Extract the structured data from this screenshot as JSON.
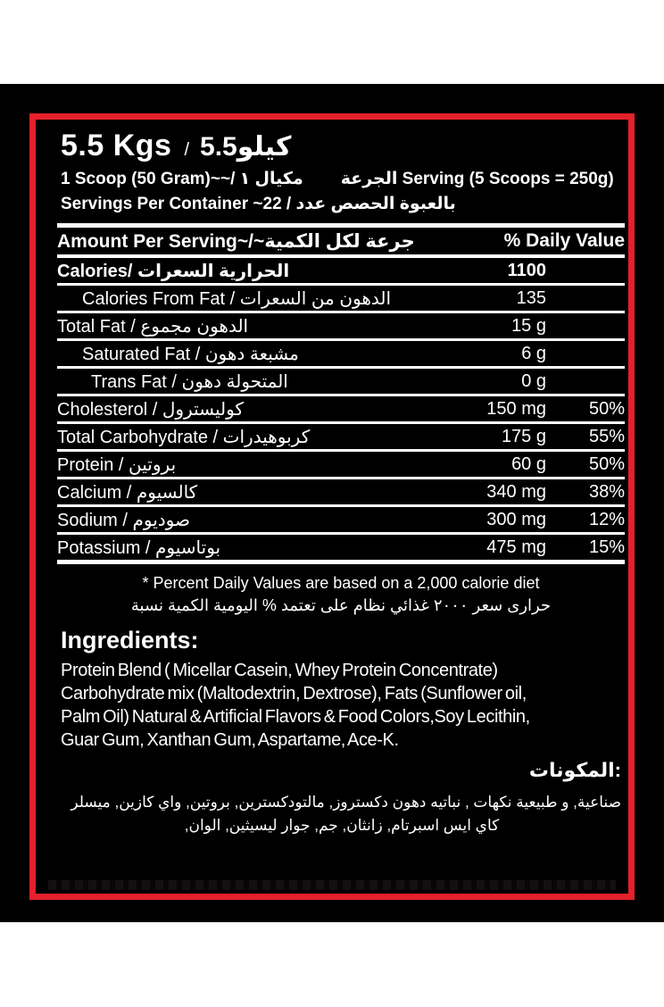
{
  "colors": {
    "border_red": "#e4202a",
    "panel": "#000000",
    "text": "#ffffff"
  },
  "label": {
    "size_line": {
      "kgs": "5.5 Kgs",
      "slash": "/",
      "kilo_ar": "5.5كيلو"
    },
    "serving_line": {
      "left": "1 Scoop (50 Gram)~~/ مكيال ١",
      "right": "الجرعة Serving (5 Scoops = 250g)"
    },
    "servings_per_container": "Servings Per Container ~22 / بالعبوة الحصص عدد",
    "table": {
      "header": {
        "amount": "Amount Per Serving~/~جرعة لكل الكمية",
        "daily": "% Daily Value"
      },
      "rows": [
        {
          "label": "Calories/ الحرارية السعرات",
          "value": "1100",
          "pct": ""
        },
        {
          "label": "Calories From Fat / الدهون من السعرات",
          "value": "135",
          "pct": ""
        },
        {
          "label": "Total Fat / الدهون مجموع",
          "value": "15 g",
          "pct": ""
        },
        {
          "label": "Saturated Fat / مشبعة دهون",
          "value": "6 g",
          "pct": ""
        },
        {
          "label": "Trans Fat / المتحولة دهون",
          "value": "0 g",
          "pct": ""
        },
        {
          "label": "Cholesterol / كوليسترول",
          "value": "150 mg",
          "pct": "50%"
        },
        {
          "label": "Total Carbohydrate / كربوهيدرات",
          "value": "175 g",
          "pct": "55%"
        },
        {
          "label": "Protein / بروتين",
          "value": "60 g",
          "pct": "50%"
        },
        {
          "label": "Calcium / كالسيوم",
          "value": "340 mg",
          "pct": "38%"
        },
        {
          "label": "Sodium / صوديوم",
          "value": "300 mg",
          "pct": "12%"
        },
        {
          "label": "Potassium / بوتاسيوم",
          "value": "475 mg",
          "pct": "15%"
        }
      ]
    },
    "footnote_en": "* Percent Daily Values are based on a 2,000 calorie diet",
    "footnote_ar": "حرارى سعر ٢٠٠٠ غذائي نظام على تعتمد % اليومية الكمية نسبة",
    "ingredients_en": {
      "heading": "Ingredients:",
      "lines": [
        "Protein Blend ( Micellar Casein, Whey Protein Concentrate)",
        "Carbohydrate mix (Maltodextrin, Dextrose), Fats (Sunflower oil,",
        "Palm Oil) Natural & Artificial Flavors & Food Colors,Soy Lecithin,",
        "Guar Gum, Xanthan Gum, Aspartame, Ace-K."
      ]
    },
    "ingredients_ar": {
      "heading": ":المكونات",
      "line1": "صناعية, و طبيعية نكهات , نباتيه دهون دكستروز, مالتودكسترين, بروتين, واي كازين, ميسلر",
      "line2": "كاي ايس اسبرتام, زانثان, جم, جوار ليسيثين, الوان,"
    }
  }
}
